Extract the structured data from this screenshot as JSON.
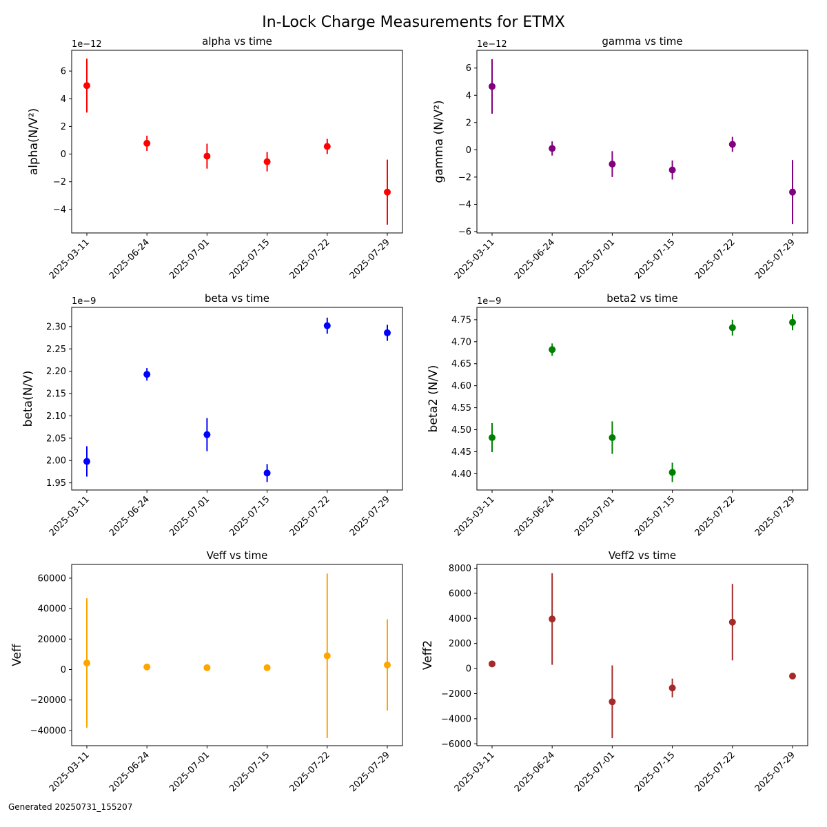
{
  "figure": {
    "title": "In-Lock Charge Measurements for ETMX",
    "footer": "Generated 20250731_155207"
  },
  "chart_data": [
    {
      "type": "scatter",
      "title": "alpha vs time",
      "xlabel": "",
      "ylabel": "alpha(N/V²)",
      "color": "#ff0000",
      "x": [
        "2025-03-11",
        "2025-06-24",
        "2025-07-01",
        "2025-07-15",
        "2025-07-22",
        "2025-07-29"
      ],
      "y": [
        4.95e-12,
        7.8e-13,
        -1.5e-13,
        -5.5e-13,
        5.5e-13,
        -2.75e-12
      ],
      "yerr": [
        1.95e-12,
        5.5e-13,
        9e-13,
        7e-13,
        5.5e-13,
        2.35e-12
      ],
      "ylim": [
        -5.7e-12,
        7.5e-12
      ],
      "yticks": [
        -4e-12,
        -2e-12,
        0,
        2e-12,
        4e-12,
        6e-12
      ],
      "ytick_labels": [
        "−4",
        "−2",
        "0",
        "2",
        "4",
        "6"
      ],
      "offset_text": "1e−12"
    },
    {
      "type": "scatter",
      "title": "gamma vs time",
      "xlabel": "",
      "ylabel": "gamma (N/V²)",
      "color": "#800080",
      "x": [
        "2025-03-11",
        "2025-06-24",
        "2025-07-01",
        "2025-07-15",
        "2025-07-22",
        "2025-07-29"
      ],
      "y": [
        4.65e-12,
        1e-13,
        -1.05e-12,
        -1.48e-12,
        4e-13,
        -3.1e-12
      ],
      "yerr": [
        2e-12,
        5.2e-13,
        9.5e-13,
        7e-13,
        5.5e-13,
        2.35e-12
      ],
      "ylim": [
        -6.1e-12,
        7.3e-12
      ],
      "yticks": [
        -6e-12,
        -4e-12,
        -2e-12,
        0,
        2e-12,
        4e-12,
        6e-12
      ],
      "ytick_labels": [
        "−6",
        "−4",
        "−2",
        "0",
        "2",
        "4",
        "6"
      ],
      "offset_text": "1e−12"
    },
    {
      "type": "scatter",
      "title": "beta vs time",
      "xlabel": "",
      "ylabel": "beta(N/V)",
      "color": "#0000ff",
      "x": [
        "2025-03-11",
        "2025-06-24",
        "2025-07-01",
        "2025-07-15",
        "2025-07-22",
        "2025-07-29"
      ],
      "y": [
        1.998e-09,
        2.193e-09,
        2.058e-09,
        1.972e-09,
        2.302e-09,
        2.286e-09
      ],
      "yerr": [
        3.4e-11,
        1.4e-11,
        3.7e-11,
        2e-11,
        1.8e-11,
        1.8e-11
      ],
      "ylim": [
        1.934e-09,
        2.343e-09
      ],
      "yticks": [
        1.95e-09,
        2e-09,
        2.05e-09,
        2.1e-09,
        2.15e-09,
        2.2e-09,
        2.25e-09,
        2.3e-09
      ],
      "ytick_labels": [
        "1.95",
        "2.00",
        "2.05",
        "2.10",
        "2.15",
        "2.20",
        "2.25",
        "2.30"
      ],
      "offset_text": "1e−9"
    },
    {
      "type": "scatter",
      "title": "beta2 vs time",
      "xlabel": "",
      "ylabel": "beta2 (N/V)",
      "color": "#008000",
      "x": [
        "2025-03-11",
        "2025-06-24",
        "2025-07-01",
        "2025-07-15",
        "2025-07-22",
        "2025-07-29"
      ],
      "y": [
        4.482e-09,
        4.682e-09,
        4.482e-09,
        4.403e-09,
        4.732e-09,
        4.744e-09
      ],
      "yerr": [
        3.3e-11,
        1.4e-11,
        3.7e-11,
        2.2e-11,
        1.8e-11,
        1.8e-11
      ],
      "ylim": [
        4.363e-09,
        4.778e-09
      ],
      "yticks": [
        4.4e-09,
        4.45e-09,
        4.5e-09,
        4.55e-09,
        4.6e-09,
        4.65e-09,
        4.7e-09,
        4.75e-09
      ],
      "ytick_labels": [
        "4.40",
        "4.45",
        "4.50",
        "4.55",
        "4.60",
        "4.65",
        "4.70",
        "4.75"
      ],
      "offset_text": "1e−9"
    },
    {
      "type": "scatter",
      "title": "Veff vs time",
      "xlabel": "",
      "ylabel": "Veff",
      "color": "#ffa500",
      "x": [
        "2025-03-11",
        "2025-06-24",
        "2025-07-01",
        "2025-07-15",
        "2025-07-22",
        "2025-07-29"
      ],
      "y": [
        4300,
        1700,
        1200,
        1200,
        9000,
        3000
      ],
      "yerr": [
        42500,
        300,
        300,
        300,
        54000,
        30000
      ],
      "ylim": [
        -50000,
        69000
      ],
      "yticks": [
        -40000,
        -20000,
        0,
        20000,
        40000,
        60000
      ],
      "ytick_labels": [
        "−40000",
        "−20000",
        "0",
        "20000",
        "40000",
        "60000"
      ],
      "offset_text": ""
    },
    {
      "type": "scatter",
      "title": "Veff2 vs time",
      "xlabel": "",
      "ylabel": "Veff2",
      "color": "#a52a2a",
      "x": [
        "2025-03-11",
        "2025-06-24",
        "2025-07-01",
        "2025-07-15",
        "2025-07-22",
        "2025-07-29"
      ],
      "y": [
        370,
        3950,
        -2650,
        -1550,
        3700,
        -600
      ],
      "yerr": [
        40,
        3650,
        2900,
        750,
        3050,
        200
      ],
      "ylim": [
        -6150,
        8300
      ],
      "yticks": [
        -6000,
        -4000,
        -2000,
        0,
        2000,
        4000,
        6000,
        8000
      ],
      "ytick_labels": [
        "−6000",
        "−4000",
        "−2000",
        "0",
        "2000",
        "4000",
        "6000",
        "8000"
      ],
      "offset_text": ""
    }
  ]
}
